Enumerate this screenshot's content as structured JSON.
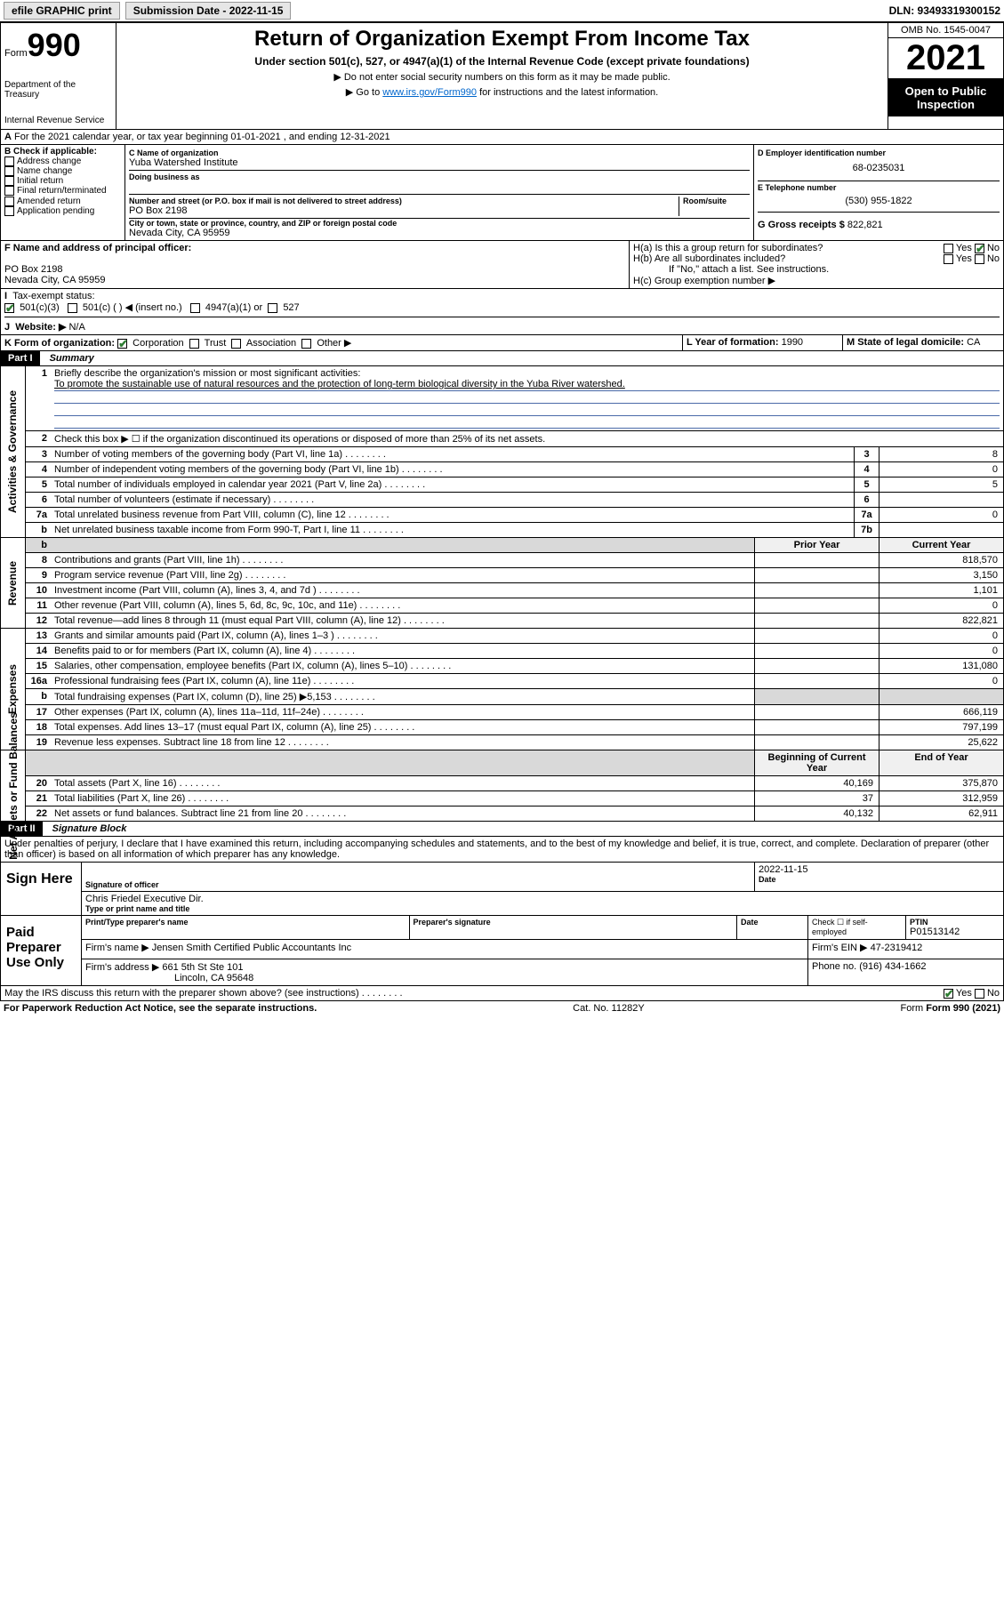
{
  "topbar": {
    "efile": "efile GRAPHIC print",
    "subLabel": "Submission Date - 2022-11-15",
    "dln": "DLN: 93493319300152"
  },
  "header": {
    "formWord": "Form",
    "formNum": "990",
    "dept": "Department of the Treasury",
    "irs": "Internal Revenue Service",
    "title": "Return of Organization Exempt From Income Tax",
    "sub": "Under section 501(c), 527, or 4947(a)(1) of the Internal Revenue Code (except private foundations)",
    "note1": "▶ Do not enter social security numbers on this form as it may be made public.",
    "note2a": "▶ Go to ",
    "note2link": "www.irs.gov/Form990",
    "note2b": " for instructions and the latest information.",
    "omb": "OMB No. 1545-0047",
    "year": "2021",
    "open": "Open to Public Inspection"
  },
  "lineA": "For the 2021 calendar year, or tax year beginning 01-01-2021   , and ending 12-31-2021",
  "boxB": {
    "label": "B Check if applicable:",
    "items": [
      "Address change",
      "Name change",
      "Initial return",
      "Final return/terminated",
      "Amended return",
      "Application pending"
    ]
  },
  "boxC": {
    "nameLabel": "C Name of organization",
    "name": "Yuba Watershed Institute",
    "dbaLabel": "Doing business as",
    "addrLabel": "Number and street (or P.O. box if mail is not delivered to street address)",
    "roomLabel": "Room/suite",
    "addr": "PO Box 2198",
    "cityLabel": "City or town, state or province, country, and ZIP or foreign postal code",
    "city": "Nevada City, CA  95959"
  },
  "boxD": {
    "label": "D Employer identification number",
    "val": "68-0235031"
  },
  "boxE": {
    "label": "E Telephone number",
    "val": "(530) 955-1822"
  },
  "boxG": {
    "label": "G Gross receipts $",
    "val": "822,821"
  },
  "boxF": {
    "label": "F  Name and address of principal officer:",
    "addr1": "PO Box 2198",
    "addr2": "Nevada City, CA  95959"
  },
  "boxH": {
    "ha": "H(a)  Is this a group return for subordinates?",
    "hb": "H(b)  Are all subordinates included?",
    "hbNote": "If \"No,\" attach a list. See instructions.",
    "hc": "H(c)  Group exemption number ▶"
  },
  "lineI": {
    "label": "Tax-exempt status:",
    "opts": [
      "501(c)(3)",
      "501(c) (  ) ◀ (insert no.)",
      "4947(a)(1) or",
      "527"
    ]
  },
  "lineJ": {
    "label": "Website: ▶",
    "val": "N/A"
  },
  "lineK": {
    "label": "K Form of organization:",
    "opts": [
      "Corporation",
      "Trust",
      "Association",
      "Other ▶"
    ]
  },
  "lineL": {
    "label": "L Year of formation:",
    "val": "1990"
  },
  "lineM": {
    "label": "M State of legal domicile:",
    "val": "CA"
  },
  "part1": {
    "bar": "Part I",
    "title": "Summary"
  },
  "gov": {
    "l1": "Briefly describe the organization's mission or most significant activities:",
    "mission": "To promote the sustainable use of natural resources and the protection of long-term biological diversity in the Yuba River watershed.",
    "l2": "Check this box ▶ ☐  if the organization discontinued its operations or disposed of more than 25% of its net assets.",
    "rows": [
      {
        "n": "3",
        "d": "Number of voting members of the governing body (Part VI, line 1a)",
        "box": "3",
        "v": "8"
      },
      {
        "n": "4",
        "d": "Number of independent voting members of the governing body (Part VI, line 1b)",
        "box": "4",
        "v": "0"
      },
      {
        "n": "5",
        "d": "Total number of individuals employed in calendar year 2021 (Part V, line 2a)",
        "box": "5",
        "v": "5"
      },
      {
        "n": "6",
        "d": "Total number of volunteers (estimate if necessary)",
        "box": "6",
        "v": ""
      },
      {
        "n": "7a",
        "d": "Total unrelated business revenue from Part VIII, column (C), line 12",
        "box": "7a",
        "v": "0"
      },
      {
        "n": "b",
        "d": "Net unrelated business taxable income from Form 990-T, Part I, line 11",
        "box": "7b",
        "v": ""
      }
    ]
  },
  "colhdr": {
    "prior": "Prior Year",
    "current": "Current Year"
  },
  "rev": [
    {
      "n": "8",
      "d": "Contributions and grants (Part VIII, line 1h)",
      "p": "",
      "c": "818,570"
    },
    {
      "n": "9",
      "d": "Program service revenue (Part VIII, line 2g)",
      "p": "",
      "c": "3,150"
    },
    {
      "n": "10",
      "d": "Investment income (Part VIII, column (A), lines 3, 4, and 7d )",
      "p": "",
      "c": "1,101"
    },
    {
      "n": "11",
      "d": "Other revenue (Part VIII, column (A), lines 5, 6d, 8c, 9c, 10c, and 11e)",
      "p": "",
      "c": "0"
    },
    {
      "n": "12",
      "d": "Total revenue—add lines 8 through 11 (must equal Part VIII, column (A), line 12)",
      "p": "",
      "c": "822,821"
    }
  ],
  "exp": [
    {
      "n": "13",
      "d": "Grants and similar amounts paid (Part IX, column (A), lines 1–3 )",
      "p": "",
      "c": "0"
    },
    {
      "n": "14",
      "d": "Benefits paid to or for members (Part IX, column (A), line 4)",
      "p": "",
      "c": "0"
    },
    {
      "n": "15",
      "d": "Salaries, other compensation, employee benefits (Part IX, column (A), lines 5–10)",
      "p": "",
      "c": "131,080"
    },
    {
      "n": "16a",
      "d": "Professional fundraising fees (Part IX, column (A), line 11e)",
      "p": "",
      "c": "0"
    },
    {
      "n": "b",
      "d": "Total fundraising expenses (Part IX, column (D), line 25) ▶5,153",
      "p": "shade",
      "c": "shade"
    },
    {
      "n": "17",
      "d": "Other expenses (Part IX, column (A), lines 11a–11d, 11f–24e)",
      "p": "",
      "c": "666,119"
    },
    {
      "n": "18",
      "d": "Total expenses. Add lines 13–17 (must equal Part IX, column (A), line 25)",
      "p": "",
      "c": "797,199"
    },
    {
      "n": "19",
      "d": "Revenue less expenses. Subtract line 18 from line 12",
      "p": "",
      "c": "25,622"
    }
  ],
  "nethdr": {
    "beg": "Beginning of Current Year",
    "end": "End of Year"
  },
  "net": [
    {
      "n": "20",
      "d": "Total assets (Part X, line 16)",
      "p": "40,169",
      "c": "375,870"
    },
    {
      "n": "21",
      "d": "Total liabilities (Part X, line 26)",
      "p": "37",
      "c": "312,959"
    },
    {
      "n": "22",
      "d": "Net assets or fund balances. Subtract line 21 from line 20",
      "p": "40,132",
      "c": "62,911"
    }
  ],
  "part2": {
    "bar": "Part II",
    "title": "Signature Block"
  },
  "penalty": "Under penalties of perjury, I declare that I have examined this return, including accompanying schedules and statements, and to the best of my knowledge and belief, it is true, correct, and complete. Declaration of preparer (other than officer) is based on all information of which preparer has any knowledge.",
  "sign": {
    "here": "Sign Here",
    "sigOfficer": "Signature of officer",
    "date": "Date",
    "dateVal": "2022-11-15",
    "name": "Chris Friedel  Executive Dir.",
    "typeLabel": "Type or print name and title"
  },
  "paid": {
    "label": "Paid Preparer Use Only",
    "h1": "Print/Type preparer's name",
    "h2": "Preparer's signature",
    "h3": "Date",
    "h4a": "Check ☐ if self-employed",
    "h4b": "PTIN",
    "ptin": "P01513142",
    "firmLabel": "Firm's name    ▶",
    "firm": "Jensen Smith Certified Public Accountants Inc",
    "einLabel": "Firm's EIN ▶",
    "ein": "47-2319412",
    "addrLabel": "Firm's address ▶",
    "addr1": "661 5th St Ste 101",
    "addr2": "Lincoln, CA  95648",
    "phoneLabel": "Phone no.",
    "phone": "(916) 434-1662"
  },
  "discuss": "May the IRS discuss this return with the preparer shown above? (see instructions)",
  "footer": {
    "pra": "For Paperwork Reduction Act Notice, see the separate instructions.",
    "cat": "Cat. No. 11282Y",
    "form": "Form 990 (2021)"
  },
  "vlabels": {
    "gov": "Activities & Governance",
    "rev": "Revenue",
    "exp": "Expenses",
    "net": "Net Assets or Fund Balances"
  }
}
